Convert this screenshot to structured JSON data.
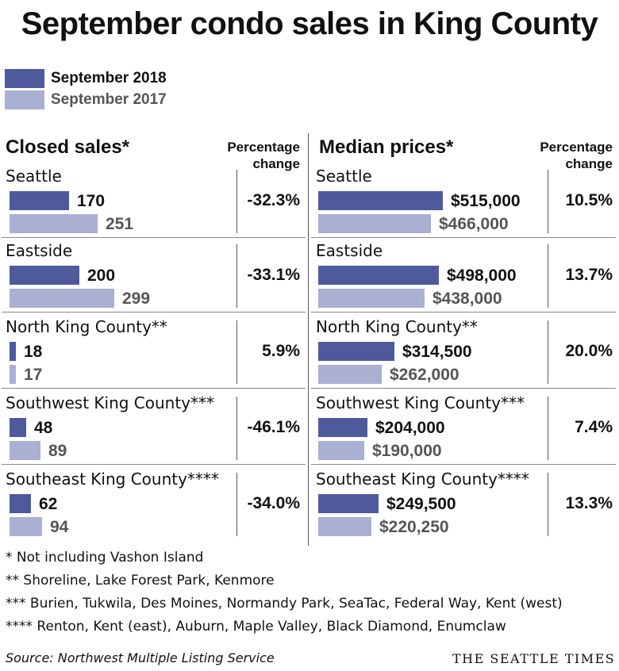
{
  "title": "September condo sales in King County",
  "legend": [
    {
      "label": "September 2018",
      "color": "#4e5a9c",
      "text_color": "#111111"
    },
    {
      "label": "September 2017",
      "color": "#a9b0d2",
      "text_color": "#555555"
    }
  ],
  "colors": {
    "current": "#4e5a9c",
    "previous": "#a9b0d2",
    "prev_text": "#555555"
  },
  "panels": {
    "left": {
      "heading": "Closed sales*",
      "pct_heading": [
        "Percentage",
        "change"
      ]
    },
    "right": {
      "heading": "Median prices*",
      "pct_heading": [
        "Percentage",
        "change"
      ]
    }
  },
  "chart_data": [
    {
      "type": "bar",
      "title": "Closed sales*",
      "categories": [
        "Seattle",
        "Eastside",
        "North King County**",
        "Southwest King County***",
        "Southeast King County****"
      ],
      "series": [
        {
          "name": "September 2018",
          "values": [
            170,
            200,
            18,
            48,
            62
          ],
          "labels": [
            "170",
            "200",
            "18",
            "48",
            "62"
          ]
        },
        {
          "name": "September 2017",
          "values": [
            251,
            299,
            17,
            89,
            94
          ],
          "labels": [
            "251",
            "299",
            "17",
            "89",
            "94"
          ]
        }
      ],
      "percentage_change": [
        "-32.3%",
        "-33.1%",
        "5.9%",
        "-46.1%",
        "-34.0%"
      ]
    },
    {
      "type": "bar",
      "title": "Median prices*",
      "categories": [
        "Seattle",
        "Eastside",
        "North King County**",
        "Southwest King County***",
        "Southeast King County****"
      ],
      "series": [
        {
          "name": "September 2018",
          "values": [
            515000,
            498000,
            314500,
            204000,
            249500
          ],
          "labels": [
            "$515,000",
            "$498,000",
            "$314,500",
            "$204,000",
            "$249,500"
          ]
        },
        {
          "name": "September 2017",
          "values": [
            466000,
            438000,
            262000,
            190000,
            220250
          ],
          "labels": [
            "$466,000",
            "$438,000",
            "$262,000",
            "$190,000",
            "$220,250"
          ]
        }
      ],
      "percentage_change": [
        "10.5%",
        "13.7%",
        "20.0%",
        "7.4%",
        "13.3%"
      ]
    }
  ],
  "footnotes": [
    "* Not including Vashon Island",
    "**  Shoreline, Lake Forest Park, Kenmore",
    "*** Burien, Tukwila, Des Moines, Normandy Park, SeaTac, Federal Way, Kent (west)",
    "**** Renton, Kent (east), Auburn, Maple Valley, Black Diamond, Enumclaw"
  ],
  "source": "Source: Northwest Multiple Listing Service",
  "brand": "THE SEATTLE TIMES"
}
